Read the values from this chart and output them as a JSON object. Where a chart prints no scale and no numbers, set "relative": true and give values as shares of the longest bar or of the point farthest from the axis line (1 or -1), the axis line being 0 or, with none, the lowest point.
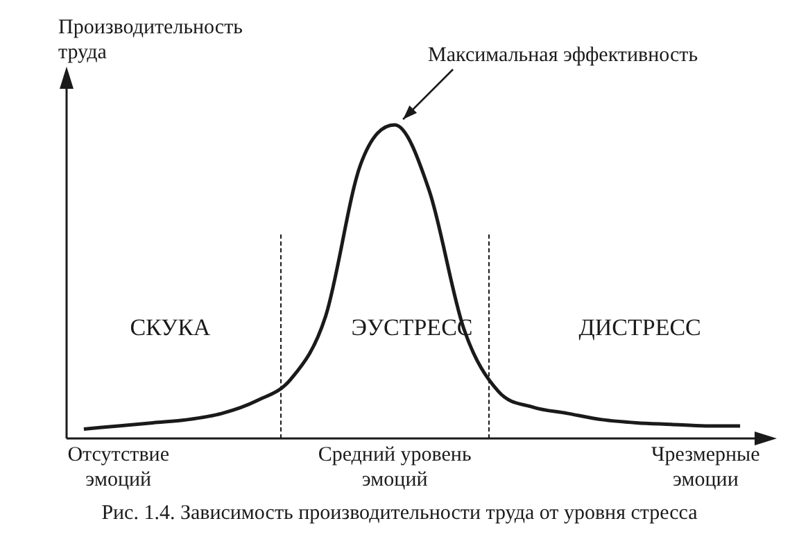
{
  "chart_data": {
    "type": "line",
    "title": "Рис. 1.4. Зависимость производительности труда от уровня стресса",
    "ylabel": "Производительность труда",
    "relative": true,
    "categories": [
      null,
      "Отсутствие эмоций",
      null,
      null,
      null,
      null,
      null,
      null,
      null,
      "Средний уровень эмоций",
      null,
      null,
      null,
      null,
      null,
      null,
      null,
      null,
      "Чрезмерные эмоции",
      null
    ],
    "series": [
      {
        "color": "#1a1a1a",
        "values": [
          0.03,
          0.04,
          0.05,
          0.06,
          0.08,
          0.12,
          0.19,
          0.39,
          0.87,
          1,
          0.79,
          0.35,
          0.15,
          0.1,
          0.08,
          0.06,
          0.05,
          0.045,
          0.04,
          0.04
        ]
      }
    ],
    "annotations": [
      {
        "text": "Максимальная эффективность",
        "x": "Средний уровень эмоций",
        "y": 1
      },
      "СКУКА",
      "ЭУСТРЕСС",
      "ДИСТРЕСС"
    ],
    "grid": false,
    "legend": false,
    "marker": "none",
    "line_style": "solid",
    "tick_labels": "x"
  }
}
